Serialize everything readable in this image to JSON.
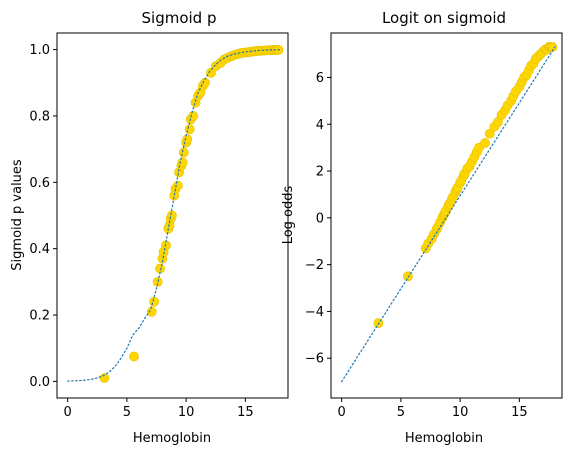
{
  "colors": {
    "marker": "#FFD700",
    "marker_edge": "#e6c200",
    "line": "#1f77b4",
    "axis": "#000000"
  },
  "chart_data": [
    {
      "type": "scatter",
      "title": "Sigmoid p",
      "xlabel": "Hemoglobin",
      "ylabel": "Sigmoid p values",
      "xlim": [
        -0.9,
        18.6
      ],
      "ylim": [
        -0.05,
        1.05
      ],
      "xticks": [
        0,
        5,
        10,
        15
      ],
      "yticks": [
        0.0,
        0.2,
        0.4,
        0.6,
        0.8,
        1.0
      ],
      "xtick_labels": [
        "0",
        "5",
        "10",
        "15"
      ],
      "ytick_labels": [
        "0.0",
        "0.2",
        "0.4",
        "0.6",
        "0.8",
        "1.0"
      ],
      "grid": false,
      "series": [
        {
          "kind": "line",
          "style": "dotted",
          "x": [
            0,
            0.5,
            1,
            1.5,
            2,
            2.5,
            3,
            3.5,
            4,
            4.5,
            5,
            5.5,
            6,
            6.5,
            7,
            7.5,
            8,
            8.5,
            9,
            9.5,
            10,
            10.5,
            11,
            11.5,
            12,
            12.5,
            13,
            13.5,
            14,
            14.5,
            15,
            15.5,
            16,
            16.5,
            17,
            17.5,
            18
          ],
          "y": [
            0.001,
            0.0016,
            0.0025,
            0.004,
            0.0064,
            0.0103,
            0.017,
            0.028,
            0.045,
            0.07,
            0.1,
            0.14,
            0.16,
            0.19,
            0.215,
            0.28,
            0.36,
            0.46,
            0.56,
            0.66,
            0.74,
            0.81,
            0.87,
            0.905,
            0.935,
            0.955,
            0.97,
            0.98,
            0.986,
            0.99,
            0.993,
            0.995,
            0.997,
            0.998,
            0.999,
            0.9993,
            0.9995
          ]
        },
        {
          "kind": "scatter",
          "x": [
            3.1,
            5.6,
            7.1,
            7.3,
            7.6,
            7.8,
            8.0,
            8.1,
            8.3,
            8.5,
            8.6,
            8.7,
            8.8,
            9.0,
            9.1,
            9.3,
            9.4,
            9.6,
            9.7,
            9.8,
            10.0,
            10.1,
            10.3,
            10.4,
            10.6,
            10.8,
            11.0,
            11.2,
            11.4,
            11.6,
            12.1,
            12.5,
            12.9,
            13.2,
            13.5,
            13.8,
            14.0,
            14.3,
            14.5,
            14.7,
            15.0,
            15.2,
            15.4,
            15.6,
            15.8,
            16.0,
            16.2,
            16.4,
            16.6,
            16.8,
            17.0,
            17.2,
            17.3,
            17.5,
            17.6,
            17.7,
            17.8
          ],
          "y": [
            0.01,
            0.075,
            0.21,
            0.24,
            0.3,
            0.34,
            0.37,
            0.39,
            0.41,
            0.46,
            0.47,
            0.49,
            0.5,
            0.56,
            0.58,
            0.59,
            0.63,
            0.65,
            0.66,
            0.69,
            0.72,
            0.73,
            0.76,
            0.79,
            0.8,
            0.84,
            0.86,
            0.87,
            0.89,
            0.9,
            0.93,
            0.95,
            0.96,
            0.97,
            0.975,
            0.98,
            0.983,
            0.986,
            0.988,
            0.99,
            0.991,
            0.992,
            0.993,
            0.994,
            0.995,
            0.996,
            0.996,
            0.997,
            0.997,
            0.998,
            0.998,
            0.998,
            0.999,
            0.999,
            0.999,
            0.999,
            0.999
          ]
        }
      ]
    },
    {
      "type": "scatter",
      "title": "Logit on sigmoid",
      "xlabel": "Hemoglobin",
      "ylabel": "Log odds",
      "xlim": [
        -0.9,
        18.6
      ],
      "ylim": [
        -7.7,
        7.9
      ],
      "xticks": [
        0,
        5,
        10,
        15
      ],
      "yticks": [
        -6,
        -4,
        -2,
        0,
        2,
        4,
        6
      ],
      "xtick_labels": [
        "0",
        "5",
        "10",
        "15"
      ],
      "ytick_labels": [
        "−6",
        "−4",
        "−2",
        "0",
        "2",
        "4",
        "6"
      ],
      "grid": false,
      "series": [
        {
          "kind": "line",
          "style": "dotted",
          "x": [
            0,
            18
          ],
          "y": [
            -7.0,
            7.3
          ]
        },
        {
          "kind": "scatter",
          "x": [
            3.1,
            5.6,
            7.1,
            7.3,
            7.6,
            7.8,
            8.0,
            8.1,
            8.3,
            8.5,
            8.6,
            8.7,
            8.8,
            9.0,
            9.1,
            9.3,
            9.4,
            9.6,
            9.7,
            9.8,
            10.0,
            10.1,
            10.3,
            10.4,
            10.6,
            10.8,
            11.0,
            11.2,
            11.4,
            11.6,
            12.1,
            12.5,
            12.9,
            13.2,
            13.5,
            13.8,
            14.0,
            14.3,
            14.5,
            14.7,
            15.0,
            15.2,
            15.4,
            15.6,
            15.8,
            16.0,
            16.2,
            16.4,
            16.6,
            16.8,
            17.0,
            17.2,
            17.3,
            17.5,
            17.6,
            17.7,
            17.8
          ],
          "y": [
            -4.5,
            -2.5,
            -1.3,
            -1.1,
            -0.9,
            -0.7,
            -0.5,
            -0.4,
            -0.2,
            0.0,
            0.1,
            0.2,
            0.3,
            0.5,
            0.6,
            0.8,
            0.9,
            1.1,
            1.2,
            1.3,
            1.5,
            1.6,
            1.8,
            1.9,
            2.1,
            2.2,
            2.4,
            2.6,
            2.8,
            3.0,
            3.2,
            3.6,
            3.9,
            4.1,
            4.4,
            4.6,
            4.8,
            5.0,
            5.2,
            5.4,
            5.6,
            5.8,
            6.0,
            6.1,
            6.3,
            6.5,
            6.6,
            6.8,
            6.9,
            7.0,
            7.1,
            7.2,
            7.2,
            7.3,
            7.3,
            7.3,
            7.3
          ]
        }
      ]
    }
  ]
}
